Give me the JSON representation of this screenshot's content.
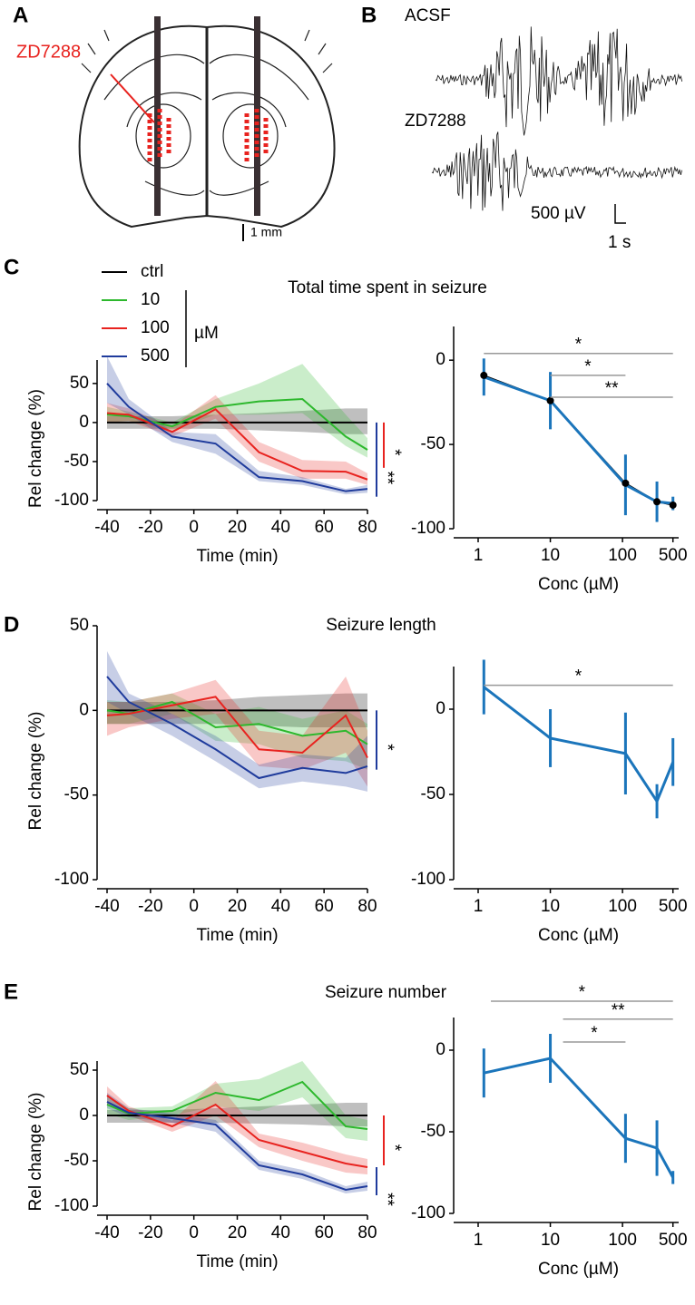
{
  "panel_labels": [
    "A",
    "B",
    "C",
    "D",
    "E"
  ],
  "panel_a": {
    "drug": "ZD7288",
    "scale": "1 mm"
  },
  "panel_b": {
    "traces": [
      "ACSF",
      "ZD7288"
    ],
    "scale_v": "500 µV",
    "scale_t": "1 s"
  },
  "chart_data": [
    {
      "type": "line",
      "title": "Total time spent in seizure",
      "x_label": "Time (min)",
      "y_label": "Rel change (%)",
      "legend_unit": "µM",
      "x": [
        -40,
        -30,
        -10,
        10,
        30,
        50,
        70,
        80
      ],
      "xlim": [
        -40,
        80
      ],
      "xticks": [
        -40,
        -20,
        0,
        20,
        40,
        60,
        80
      ],
      "ylim": [
        -100,
        80
      ],
      "yticks": [
        -100,
        -50,
        0,
        50
      ],
      "series": [
        {
          "name": "ctrl",
          "color": "#000000",
          "values": [
            0,
            0,
            0,
            0,
            0,
            0,
            0,
            0
          ],
          "lower": [
            -8,
            -8,
            -8,
            -8,
            -10,
            -12,
            -15,
            -15
          ],
          "upper": [
            8,
            8,
            8,
            10,
            12,
            15,
            18,
            18
          ]
        },
        {
          "name": "10",
          "color": "#2db82d",
          "values": [
            10,
            8,
            -5,
            20,
            27,
            30,
            -18,
            -35
          ],
          "lower": [
            0,
            2,
            -10,
            10,
            10,
            12,
            -30,
            -45
          ],
          "upper": [
            20,
            14,
            0,
            30,
            50,
            75,
            10,
            -20
          ]
        },
        {
          "name": "100",
          "color": "#e8231f",
          "values": [
            12,
            10,
            -12,
            17,
            -38,
            -62,
            -63,
            -73
          ],
          "lower": [
            0,
            2,
            -18,
            5,
            -50,
            -72,
            -72,
            -80
          ],
          "upper": [
            25,
            18,
            -5,
            35,
            -25,
            -48,
            -50,
            -65
          ]
        },
        {
          "name": "500",
          "color": "#1f3b9c",
          "values": [
            50,
            20,
            -18,
            -27,
            -70,
            -75,
            -88,
            -85
          ],
          "lower": [
            25,
            10,
            -25,
            -40,
            -75,
            -80,
            -92,
            -90
          ],
          "upper": [
            85,
            30,
            -12,
            -15,
            -62,
            -70,
            -85,
            -80
          ]
        }
      ],
      "significance": [
        {
          "color": "#e8231f",
          "y": [
            0,
            -58
          ],
          "label": "*"
        },
        {
          "color": "#1f3b9c",
          "y": [
            0,
            -95
          ],
          "label": "**"
        }
      ]
    },
    {
      "type": "errorbar",
      "x_label": "Conc (µM)",
      "log_x": true,
      "x": [
        1.2,
        10,
        110,
        300,
        500
      ],
      "xlim": [
        1,
        600
      ],
      "xticks": [
        1,
        10,
        100,
        500
      ],
      "ylim": [
        -100,
        20
      ],
      "yticks": [
        -100,
        -50,
        0
      ],
      "color": "#1b75bb",
      "values": [
        -10,
        -24,
        -74,
        -84,
        -85
      ],
      "errors": [
        11,
        17,
        18,
        12,
        4
      ],
      "fit": {
        "color": "#000000",
        "values": [
          -9,
          -24,
          -73,
          -84,
          -86
        ]
      },
      "brackets": [
        {
          "x": [
            1.2,
            500
          ],
          "y": 4,
          "label": "*"
        },
        {
          "x": [
            10,
            110
          ],
          "y": -9,
          "label": "*"
        },
        {
          "x": [
            10,
            500
          ],
          "y": -22,
          "label": "**"
        }
      ]
    },
    {
      "type": "line",
      "title": "Seizure length",
      "x_label": "Time (min)",
      "y_label": "Rel change (%)",
      "x": [
        -40,
        -30,
        -10,
        10,
        30,
        50,
        70,
        80
      ],
      "xlim": [
        -40,
        80
      ],
      "xticks": [
        -40,
        -20,
        0,
        20,
        40,
        60,
        80
      ],
      "ylim": [
        -100,
        50
      ],
      "yticks": [
        -100,
        -50,
        0,
        50
      ],
      "series": [
        {
          "color": "#000000",
          "values": [
            0,
            0,
            0,
            0,
            0,
            0,
            0,
            0
          ],
          "lower": [
            -8,
            -8,
            -8,
            -8,
            -9,
            -10,
            -10,
            -10
          ],
          "upper": [
            5,
            5,
            5,
            6,
            8,
            9,
            10,
            10
          ]
        },
        {
          "color": "#2db82d",
          "values": [
            0,
            -2,
            5,
            -10,
            -8,
            -15,
            -12,
            -20
          ],
          "lower": [
            -8,
            -8,
            -2,
            -18,
            -20,
            -28,
            -30,
            -35
          ],
          "upper": [
            6,
            5,
            10,
            -2,
            2,
            -5,
            0,
            -8
          ]
        },
        {
          "color": "#e8231f",
          "values": [
            -3,
            -2,
            3,
            8,
            -23,
            -25,
            -3,
            -28
          ],
          "lower": [
            -15,
            -10,
            -5,
            -2,
            -33,
            -35,
            -25,
            -45
          ],
          "upper": [
            5,
            5,
            10,
            18,
            -12,
            -15,
            20,
            -12
          ]
        },
        {
          "color": "#1f3b9c",
          "values": [
            20,
            5,
            -8,
            -23,
            -40,
            -34,
            -37,
            -33
          ],
          "lower": [
            5,
            -2,
            -15,
            -30,
            -46,
            -42,
            -45,
            -48
          ],
          "upper": [
            35,
            10,
            -2,
            -15,
            -32,
            -26,
            -28,
            -15
          ]
        }
      ],
      "significance": [
        {
          "color": "#1f3b9c",
          "y": [
            0,
            -35
          ],
          "label": "*"
        }
      ]
    },
    {
      "type": "errorbar",
      "x_label": "Conc (µM)",
      "log_x": true,
      "x": [
        1.2,
        10,
        110,
        300,
        500
      ],
      "xlim": [
        1,
        600
      ],
      "xticks": [
        1,
        10,
        100,
        500
      ],
      "ylim": [
        -100,
        25
      ],
      "yticks": [
        -100,
        -50,
        0
      ],
      "color": "#1b75bb",
      "values": [
        13,
        -17,
        -26,
        -54,
        -31
      ],
      "errors": [
        16,
        17,
        24,
        10,
        14
      ],
      "brackets": [
        {
          "x": [
            1.2,
            500
          ],
          "y": 14,
          "label": "*"
        }
      ]
    },
    {
      "type": "line",
      "title": "Seizure number",
      "x_label": "Time (min)",
      "y_label": "Rel change (%)",
      "x": [
        -40,
        -30,
        -10,
        10,
        30,
        50,
        70,
        80
      ],
      "xlim": [
        -40,
        80
      ],
      "xticks": [
        -40,
        -20,
        0,
        20,
        40,
        60,
        80
      ],
      "ylim": [
        -100,
        60
      ],
      "yticks": [
        -100,
        -50,
        0,
        50
      ],
      "series": [
        {
          "color": "#000000",
          "values": [
            0,
            0,
            0,
            0,
            0,
            0,
            0,
            0
          ],
          "lower": [
            -8,
            -8,
            -8,
            -8,
            -9,
            -10,
            -12,
            -12
          ],
          "upper": [
            6,
            6,
            6,
            8,
            10,
            12,
            14,
            14
          ]
        },
        {
          "color": "#2db82d",
          "values": [
            12,
            2,
            5,
            25,
            17,
            37,
            -12,
            -15
          ],
          "lower": [
            2,
            -5,
            0,
            10,
            5,
            20,
            -25,
            -28
          ],
          "upper": [
            22,
            8,
            10,
            35,
            40,
            60,
            0,
            -5
          ]
        },
        {
          "color": "#e8231f",
          "values": [
            22,
            5,
            -12,
            12,
            -27,
            -40,
            -53,
            -57
          ],
          "lower": [
            12,
            0,
            -18,
            0,
            -35,
            -50,
            -63,
            -65
          ],
          "upper": [
            32,
            10,
            -6,
            38,
            -20,
            -30,
            -43,
            -48
          ]
        },
        {
          "color": "#1f3b9c",
          "values": [
            15,
            3,
            -3,
            -10,
            -55,
            -65,
            -82,
            -78
          ],
          "lower": [
            8,
            -2,
            -8,
            -18,
            -60,
            -70,
            -86,
            -83
          ],
          "upper": [
            25,
            8,
            2,
            -5,
            -50,
            -60,
            -78,
            -73
          ]
        }
      ],
      "significance": [
        {
          "color": "#e8231f",
          "y": [
            0,
            -55
          ],
          "label": "*"
        },
        {
          "color": "#1f3b9c",
          "y": [
            -57,
            -88
          ],
          "label": "**"
        }
      ]
    },
    {
      "type": "errorbar",
      "x_label": "Conc (µM)",
      "log_x": true,
      "x": [
        1.2,
        10,
        110,
        300,
        500
      ],
      "xlim": [
        1,
        600
      ],
      "xticks": [
        1,
        10,
        100,
        500
      ],
      "ylim": [
        -100,
        20
      ],
      "yticks": [
        -100,
        -50,
        0
      ],
      "color": "#1b75bb",
      "values": [
        -14,
        -5,
        -54,
        -60,
        -78
      ],
      "errors": [
        15,
        15,
        15,
        17,
        4
      ],
      "brackets": [
        {
          "x": [
            1.5,
            500
          ],
          "y": 30,
          "label": "*"
        },
        {
          "x": [
            15,
            500
          ],
          "y": 19,
          "label": "**"
        },
        {
          "x": [
            15,
            110
          ],
          "y": 5,
          "label": "*"
        }
      ]
    }
  ]
}
